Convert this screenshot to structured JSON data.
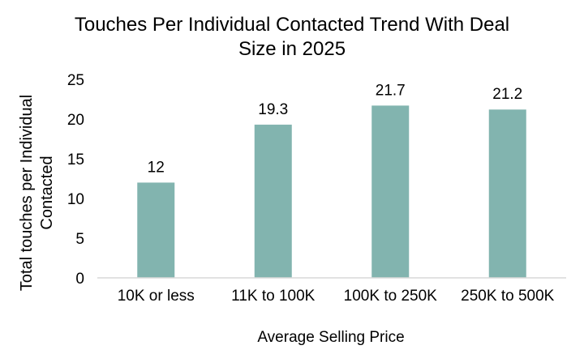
{
  "chart_data": {
    "type": "bar",
    "title_lines": [
      "Touches Per Individual Contacted Trend With Deal",
      "Size in 2025"
    ],
    "xlabel": "Average Selling Price",
    "ylabel_lines": [
      "Total touches per Individual",
      "Contacted"
    ],
    "categories": [
      "10K or less",
      "11K to 100K",
      "100K to 250K",
      "250K to 500K"
    ],
    "values": [
      12,
      19.3,
      21.7,
      21.2
    ],
    "data_labels": [
      "12",
      "19.3",
      "21.7",
      "21.2"
    ],
    "ylim": [
      0,
      25
    ],
    "yticks": [
      0,
      5,
      10,
      15,
      20,
      25
    ],
    "grid": false,
    "legend": "none",
    "bar_color": "#82B4AF",
    "axis_color": "#D9D9D9"
  }
}
